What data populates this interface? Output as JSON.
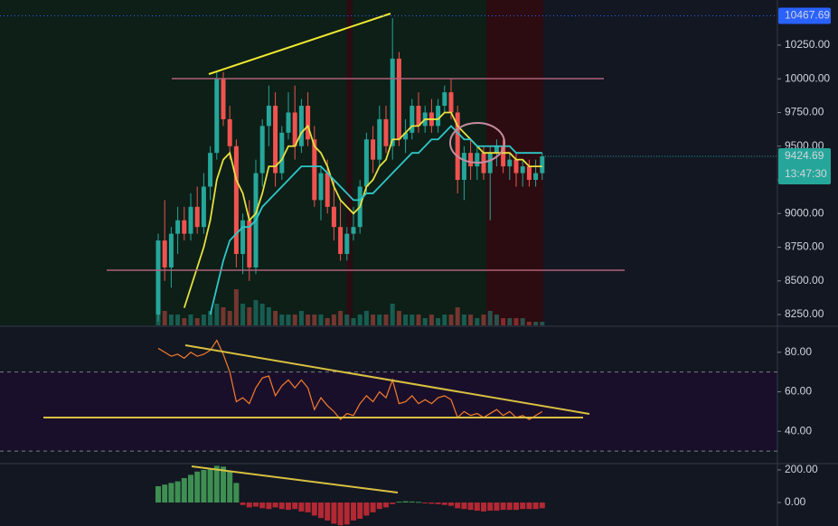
{
  "chart_data": {
    "type": "candlestick",
    "open": [
      8250,
      8800,
      8600,
      8850,
      8950,
      8850,
      9050,
      8900,
      9200,
      9450,
      10000,
      9700,
      9500,
      8700,
      8950,
      8600,
      9300,
      9650,
      9800,
      9300,
      9600,
      9750,
      9500,
      9800,
      9550,
      9100,
      9300,
      9050,
      8900,
      8700,
      8850,
      8900,
      9200,
      9550,
      9400,
      9700,
      9500,
      10150,
      9550,
      9600,
      9800,
      9650,
      9750,
      9650,
      9800,
      9900,
      9750,
      9250,
      9450,
      9350,
      9450,
      9300,
      9450,
      9500,
      9350,
      9400,
      9300,
      9350,
      9250,
      9300
    ],
    "high": [
      8850,
      9100,
      8900,
      9050,
      9050,
      9150,
      9200,
      9300,
      9500,
      10050,
      10050,
      9800,
      9550,
      9000,
      9100,
      9400,
      9700,
      9950,
      9900,
      9650,
      9900,
      9950,
      9850,
      9900,
      9650,
      9350,
      9400,
      9250,
      9100,
      8900,
      9050,
      9250,
      9600,
      9650,
      9800,
      9800,
      10450,
      10200,
      9700,
      9850,
      9900,
      9800,
      9850,
      9850,
      9950,
      10000,
      9800,
      9500,
      9550,
      9500,
      9500,
      9500,
      9550,
      9550,
      9450,
      9450,
      9400,
      9400,
      9400,
      9450
    ],
    "low": [
      8200,
      8500,
      8450,
      8700,
      8800,
      8800,
      8850,
      8850,
      9100,
      9400,
      9650,
      9400,
      8600,
      8550,
      8500,
      8550,
      9200,
      9500,
      9200,
      9250,
      9550,
      9400,
      9450,
      9500,
      9050,
      8950,
      9000,
      8800,
      8650,
      8650,
      8800,
      8850,
      9150,
      9300,
      9350,
      9450,
      9400,
      9500,
      9450,
      9550,
      9600,
      9600,
      9600,
      9600,
      9750,
      9700,
      9150,
      9100,
      9250,
      9250,
      9250,
      8950,
      9350,
      9300,
      9250,
      9200,
      9200,
      9200,
      9200,
      9250
    ],
    "close": [
      8800,
      8600,
      8850,
      8950,
      8850,
      9050,
      8900,
      9200,
      9450,
      10000,
      9700,
      9500,
      8700,
      8950,
      8600,
      9300,
      9650,
      9800,
      9300,
      9600,
      9750,
      9500,
      9800,
      9550,
      9100,
      9300,
      9050,
      8900,
      8700,
      8850,
      8900,
      9200,
      9550,
      9400,
      9700,
      9500,
      10150,
      9550,
      9600,
      9800,
      9650,
      9750,
      9650,
      9800,
      9900,
      9750,
      9250,
      9450,
      9350,
      9450,
      9300,
      9450,
      9500,
      9350,
      9400,
      9300,
      9350,
      9250,
      9300,
      9424.69
    ],
    "volume": [
      5,
      4,
      3,
      3,
      2,
      3,
      2,
      3,
      4,
      6,
      5,
      4,
      10,
      6,
      5,
      7,
      6,
      5,
      4,
      3,
      3,
      3,
      4,
      3,
      3,
      3,
      2,
      3,
      4,
      3,
      2,
      3,
      4,
      3,
      3,
      3,
      6,
      4,
      3,
      3,
      3,
      2,
      3,
      2,
      3,
      3,
      5,
      3,
      3,
      2,
      3,
      4,
      3,
      2,
      2,
      2,
      2,
      1,
      1,
      1
    ],
    "colors": {
      "up": "#26a69a",
      "down": "#ef5350"
    },
    "moving_averages": [
      {
        "color": "#e6e040",
        "values": [
          null,
          null,
          null,
          null,
          8300,
          8450,
          8600,
          8750,
          8950,
          9250,
          9400,
          9450,
          9250,
          9150,
          8950,
          9000,
          9150,
          9350,
          9350,
          9400,
          9500,
          9500,
          9600,
          9650,
          9500,
          9450,
          9350,
          9200,
          9100,
          9050,
          9000,
          9050,
          9200,
          9250,
          9350,
          9400,
          9550,
          9550,
          9600,
          9650,
          9650,
          9700,
          9700,
          9700,
          9750,
          9750,
          9650,
          9600,
          9550,
          9500,
          9450,
          9450,
          9450,
          9450,
          9450,
          9400,
          9400,
          9350,
          9350,
          9350
        ]
      },
      {
        "color": "#2fc7c9",
        "values": [
          null,
          null,
          null,
          null,
          null,
          null,
          null,
          null,
          8250,
          8450,
          8650,
          8800,
          8850,
          8900,
          8900,
          8950,
          9050,
          9100,
          9150,
          9200,
          9250,
          9300,
          9350,
          9350,
          9350,
          9350,
          9300,
          9250,
          9200,
          9150,
          9100,
          9100,
          9150,
          9150,
          9200,
          9250,
          9300,
          9350,
          9400,
          9450,
          9450,
          9500,
          9550,
          9550,
          9600,
          9650,
          9600,
          9550,
          9550,
          9500,
          9500,
          9500,
          9500,
          9500,
          9500,
          9450,
          9450,
          9450,
          9450,
          9450
        ]
      }
    ],
    "ylim": [
      8170,
      10585
    ],
    "yticks": [
      {
        "value": 8250,
        "label": "8250.00"
      },
      {
        "value": 8500,
        "label": "8500.00"
      },
      {
        "value": 8750,
        "label": "8750.00"
      },
      {
        "value": 9000,
        "label": "9000.00"
      },
      {
        "value": 9250,
        "label": "9250.00"
      },
      {
        "value": 9500,
        "label": "9500.00"
      },
      {
        "value": 9750,
        "label": "9750.00"
      },
      {
        "value": 10000,
        "label": "10000.00"
      },
      {
        "value": 10250,
        "label": "10250.00"
      }
    ],
    "high_marker": 10467.69,
    "last_price": 9424.69,
    "countdown": "13:47:30",
    "rsi": {
      "color": "#f57c2a",
      "values": [
        82,
        80,
        78,
        79,
        77,
        80,
        78,
        79,
        81,
        86,
        79,
        70,
        55,
        57,
        54,
        62,
        67,
        68,
        58,
        63,
        66,
        62,
        66,
        62,
        51,
        57,
        53,
        50,
        46,
        49,
        48,
        54,
        58,
        55,
        60,
        57,
        66,
        54,
        55,
        58,
        54,
        56,
        54,
        57,
        58,
        56,
        47,
        50,
        48,
        49,
        47,
        49,
        51,
        48,
        50,
        47,
        48,
        46,
        48,
        50
      ],
      "ylim": [
        24.1,
        92.7
      ],
      "bands": [
        30,
        70
      ],
      "yticks": [
        {
          "value": 40,
          "label": "40.00"
        },
        {
          "value": 60,
          "label": "60.00"
        },
        {
          "value": 80,
          "label": "80.00"
        }
      ]
    },
    "macd": {
      "values": [
        100,
        110,
        120,
        130,
        150,
        170,
        190,
        200,
        210,
        225,
        220,
        190,
        120,
        -15,
        -30,
        -25,
        -35,
        -40,
        -30,
        -40,
        -45,
        -40,
        -55,
        -60,
        -80,
        -95,
        -110,
        -130,
        -140,
        -135,
        -110,
        -100,
        -80,
        -60,
        -40,
        -30,
        -10,
        5,
        8,
        6,
        4,
        -5,
        -8,
        -10,
        -15,
        -20,
        -35,
        -40,
        -45,
        -50,
        -55,
        -50,
        -50,
        -45,
        -45,
        -45,
        -40,
        -40,
        -40,
        -35
      ],
      "colors": {
        "up": "#3e8f52",
        "down": "#b22833"
      },
      "ylim": [
        -144,
        233
      ],
      "yticks": [
        {
          "value": 0,
          "label": "0.00"
        },
        {
          "value": 200,
          "label": "200.00"
        }
      ]
    }
  }
}
